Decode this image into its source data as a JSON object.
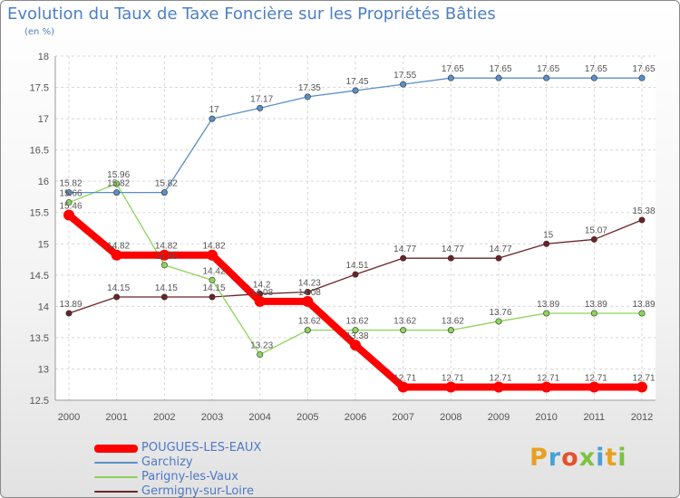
{
  "title": "Evolution du Taux de Taxe Foncière sur les Propriétés Bâties",
  "subtitle": "(en %)",
  "brand": "Proxiti",
  "brand_colors": [
    "#e8a020",
    "#4aa0d8",
    "#e8502a",
    "#7cc242",
    "#4aa0d8",
    "#e8a020",
    "#7cc242"
  ],
  "chart_data": {
    "type": "line",
    "title": "Evolution du Taux de Taxe Foncière sur les Propriétés Bâties",
    "ylabel": "(en %)",
    "xlabel": "",
    "x": [
      "2000",
      "2001",
      "2002",
      "2003",
      "2004",
      "2005",
      "2006",
      "2007",
      "2008",
      "2009",
      "2010",
      "2011",
      "2012"
    ],
    "ylim": [
      12.5,
      18
    ],
    "yticks": [
      "12.5",
      "13",
      "13.5",
      "14",
      "14.5",
      "15",
      "15.5",
      "16",
      "16.5",
      "17",
      "17.5",
      "18"
    ],
    "grid": true,
    "legend_position": "bottom-left",
    "series": [
      {
        "name": "POUGUES-LES-EAUX",
        "color": "#ff0000",
        "values": [
          15.46,
          14.82,
          14.82,
          14.82,
          14.08,
          14.08,
          13.38,
          12.71,
          12.71,
          12.71,
          12.71,
          12.71,
          12.71
        ],
        "labels": [
          "15.46",
          "14.82",
          "14.82",
          "14.82",
          "14.08",
          "14.08",
          "13.38",
          "12.71",
          "12.71",
          "12.71",
          "12.71",
          "12.71",
          "12.71"
        ]
      },
      {
        "name": "Garchizy",
        "color": "#5b8fc6",
        "values": [
          15.82,
          15.82,
          15.82,
          17,
          17.17,
          17.35,
          17.45,
          17.55,
          17.65,
          17.65,
          17.65,
          17.65,
          17.65
        ],
        "labels": [
          "15.82",
          "15.82",
          "15.82",
          "17",
          "17.17",
          "17.35",
          "17.45",
          "17.55",
          "17.65",
          "17.65",
          "17.65",
          "17.65",
          "17.65"
        ]
      },
      {
        "name": "Parigny-les-Vaux",
        "color": "#8ed35a",
        "values": [
          15.66,
          15.96,
          14.66,
          14.42,
          13.23,
          13.62,
          13.62,
          13.62,
          13.62,
          13.76,
          13.89,
          13.89,
          13.89
        ],
        "labels": [
          "15.66",
          "15.96",
          "14.66",
          "14.42",
          "13.23",
          "13.62",
          "13.62",
          "13.62",
          "13.62",
          "13.76",
          "13.89",
          "13.89",
          "13.89"
        ]
      },
      {
        "name": "Germigny-sur-Loire",
        "color": "#6b2426",
        "values": [
          13.89,
          14.15,
          14.15,
          14.15,
          14.2,
          14.23,
          14.51,
          14.77,
          14.77,
          14.77,
          15,
          15.07,
          15.38
        ],
        "labels": [
          "13.89",
          "14.15",
          "14.15",
          "14.15",
          "14.2",
          "14.23",
          "14.51",
          "14.77",
          "14.77",
          "14.77",
          "15",
          "15.07",
          "15.38"
        ]
      }
    ]
  }
}
